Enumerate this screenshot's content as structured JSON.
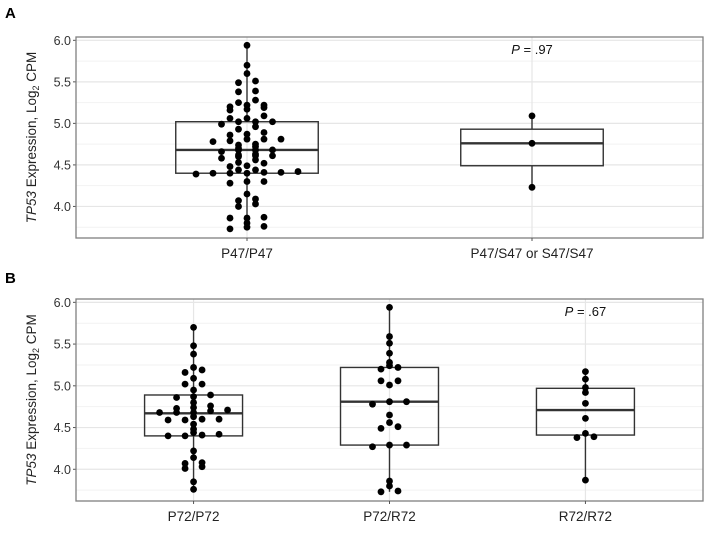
{
  "colors": {
    "dot": "#000000",
    "box": "#333333",
    "grid_major": "#e6e6e6",
    "grid_minor": "#f2f2f2",
    "frame": "#7f7f7f"
  },
  "ylabel": {
    "gene": "TP53",
    "text": " Expression, Log",
    "sub": "2",
    "rest": " CPM"
  },
  "chart_data": [
    {
      "type": "box",
      "panel_label": "A",
      "annotation": {
        "p_label": "P",
        "p_value": " = .97"
      },
      "ylim": [
        3.62,
        6.04
      ],
      "yticks": [
        "4.0",
        "4.5",
        "5.0",
        "5.5",
        "6.0"
      ],
      "grid": true,
      "categories": [
        "P47/P47",
        "P47/S47 or S47/S47"
      ],
      "boxes": [
        {
          "q1": 4.4,
          "median": 4.68,
          "q3": 5.02,
          "whisker_low": 3.73,
          "whisker_high": 5.94
        },
        {
          "q1": 4.49,
          "median": 4.76,
          "q3": 4.93,
          "whisker_low": 4.23,
          "whisker_high": 5.09
        }
      ],
      "points": [
        [
          5.94,
          5.7,
          5.6,
          5.49,
          5.51,
          5.38,
          5.39,
          5.25,
          5.28,
          5.22,
          5.22,
          5.19,
          5.2,
          5.17,
          5.16,
          5.09,
          5.06,
          5.06,
          5.02,
          5.02,
          5.02,
          4.99,
          4.96,
          4.93,
          4.89,
          4.87,
          4.86,
          4.81,
          4.81,
          4.81,
          4.79,
          4.78,
          4.75,
          4.74,
          4.72,
          4.7,
          4.68,
          4.68,
          4.68,
          4.66,
          4.63,
          4.62,
          4.61,
          4.61,
          4.6,
          4.58,
          4.56,
          4.53,
          4.52,
          4.49,
          4.48,
          4.44,
          4.44,
          4.41,
          4.41,
          4.4,
          4.4,
          4.4,
          4.42,
          4.39,
          4.3,
          4.3,
          4.28,
          4.15,
          4.09,
          4.07,
          4.03,
          4.0,
          3.86,
          3.86,
          3.87,
          3.8,
          3.76,
          3.75,
          3.73
        ],
        [
          5.09,
          4.76,
          4.23
        ]
      ]
    },
    {
      "type": "box",
      "panel_label": "B",
      "annotation": {
        "p_label": "P",
        "p_value": " = .67"
      },
      "ylim": [
        3.62,
        6.04
      ],
      "yticks": [
        "4.0",
        "4.5",
        "5.0",
        "5.5",
        "6.0"
      ],
      "grid": true,
      "categories": [
        "P72/P72",
        "P72/R72",
        "R72/R72"
      ],
      "boxes": [
        {
          "q1": 4.4,
          "median": 4.67,
          "q3": 4.89,
          "whisker_low": 3.76,
          "whisker_high": 5.7
        },
        {
          "q1": 4.29,
          "median": 4.81,
          "q3": 5.22,
          "whisker_low": 3.73,
          "whisker_high": 5.94
        },
        {
          "q1": 4.41,
          "median": 4.71,
          "q3": 4.97,
          "whisker_low": 3.87,
          "whisker_high": 5.17
        }
      ],
      "points": [
        [
          5.7,
          5.48,
          5.38,
          5.22,
          5.19,
          5.16,
          5.09,
          5.02,
          5.02,
          4.95,
          4.89,
          4.87,
          4.86,
          4.8,
          4.76,
          4.74,
          4.73,
          4.71,
          4.7,
          4.68,
          4.68,
          4.68,
          4.63,
          4.6,
          4.59,
          4.59,
          4.6,
          4.54,
          4.48,
          4.44,
          4.42,
          4.41,
          4.4,
          4.4,
          4.22,
          4.14,
          4.08,
          4.07,
          4.03,
          4.01,
          3.85,
          3.76
        ],
        [
          5.94,
          5.59,
          5.51,
          5.39,
          5.28,
          5.24,
          5.2,
          5.22,
          5.06,
          5.06,
          5.01,
          4.81,
          4.78,
          4.81,
          4.65,
          4.56,
          4.49,
          4.51,
          4.29,
          4.27,
          4.29,
          3.86,
          3.8,
          3.73,
          3.74
        ],
        [
          5.17,
          5.08,
          4.98,
          4.92,
          4.79,
          4.61,
          4.43,
          4.38,
          4.39,
          3.87
        ]
      ]
    }
  ]
}
